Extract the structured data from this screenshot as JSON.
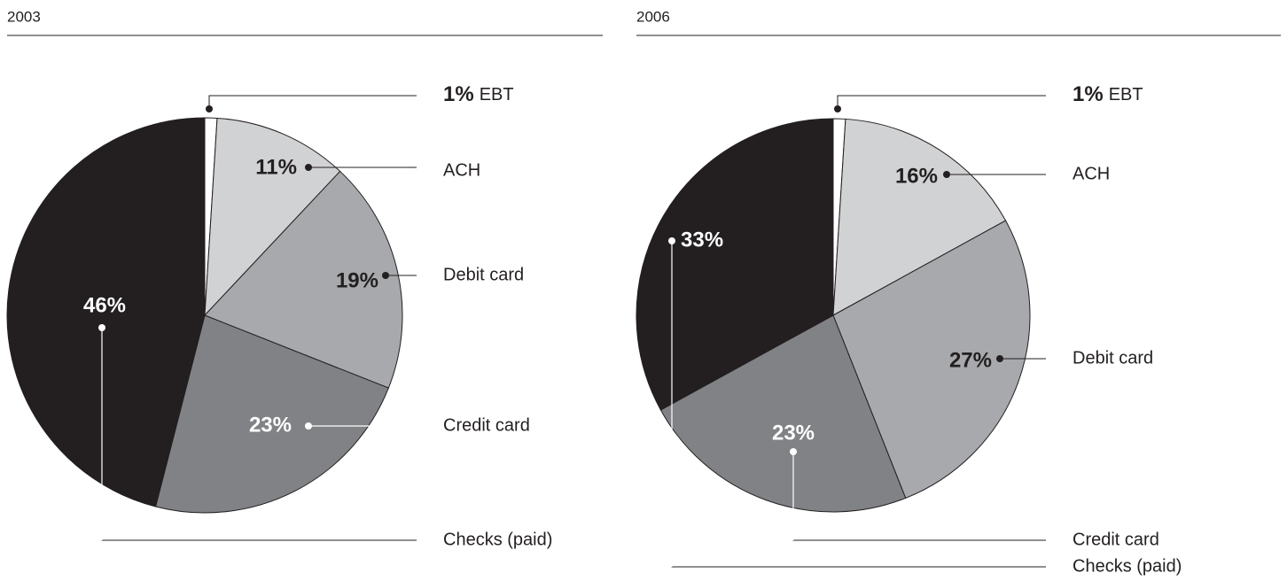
{
  "chart_data": [
    {
      "type": "pie",
      "title": "2003",
      "categories": [
        "EBT",
        "ACH",
        "Debit card",
        "Credit card",
        "Checks (paid)"
      ],
      "values": [
        1,
        11,
        19,
        23,
        46
      ],
      "value_labels": [
        "1%",
        "11%",
        "19%",
        "23%",
        "46%"
      ],
      "colors": [
        "#ffffff",
        "#d1d2d4",
        "#a7a9ac",
        "#808285",
        "#231f20"
      ]
    },
    {
      "type": "pie",
      "title": "2006",
      "categories": [
        "EBT",
        "ACH",
        "Debit card",
        "Credit card",
        "Checks (paid)"
      ],
      "values": [
        1,
        16,
        27,
        23,
        33
      ],
      "value_labels": [
        "1%",
        "16%",
        "27%",
        "23%",
        "33%"
      ],
      "colors": [
        "#ffffff",
        "#d1d2d4",
        "#a7a9ac",
        "#808285",
        "#231f20"
      ]
    }
  ]
}
